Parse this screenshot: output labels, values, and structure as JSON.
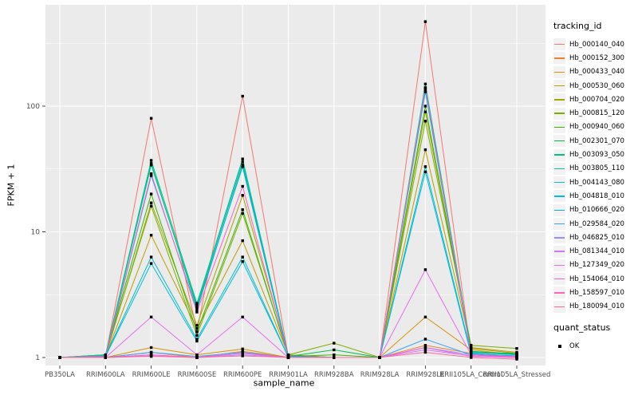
{
  "figure": {
    "background": "#FFFFFF",
    "panel_background": "#EBEBEB",
    "gridline_color": "#FFFFFF",
    "axis_text_color": "#4D4D4D",
    "tick_mark_color": "#333333",
    "point_color": "#000000"
  },
  "chart_data": {
    "type": "line",
    "title": "",
    "xlabel": "sample_name",
    "ylabel": "FPKM + 1",
    "y_scale": "log10",
    "ylim": [
      0.86,
      640
    ],
    "yticks": [
      {
        "label": "1",
        "value": 1
      },
      {
        "label": "10",
        "value": 10
      },
      {
        "label": "100",
        "value": 100
      }
    ],
    "y_minor_breaks": [
      3.162,
      31.62,
      316.2
    ],
    "grid": true,
    "point_marker": "square",
    "categories": [
      "PB350LA",
      "RRIM600LA",
      "RRIM600LE",
      "RRIM600SE",
      "RRIM600PE",
      "RRIM901LA",
      "RRIM928BA",
      "RRIM928LA",
      "RRIM928LE",
      "RRII105LA_Control",
      "RRII105LA_Stressed"
    ],
    "series": [
      {
        "name": "Hb_000140_040",
        "color": "#F8766D",
        "values": [
          1.0,
          1.02,
          80,
          1.6,
          120,
          1.02,
          1.0,
          1.0,
          470,
          1.05,
          1.0
        ]
      },
      {
        "name": "Hb_000152_300",
        "color": "#EA8331",
        "values": [
          1.0,
          1.0,
          1.1,
          1.0,
          1.12,
          1.0,
          1.0,
          1.0,
          1.25,
          1.08,
          1.02
        ]
      },
      {
        "name": "Hb_000433_040",
        "color": "#D89000",
        "values": [
          1.0,
          1.0,
          1.2,
          1.05,
          1.17,
          1.0,
          1.0,
          1.0,
          2.1,
          1.15,
          1.05
        ]
      },
      {
        "name": "Hb_000530_060",
        "color": "#C09B00",
        "values": [
          1.0,
          1.02,
          9.4,
          1.7,
          8.5,
          1.05,
          1.0,
          1.0,
          45,
          1.2,
          1.1
        ]
      },
      {
        "name": "Hb_000704_020",
        "color": "#A3A500",
        "values": [
          1.0,
          1.02,
          17,
          1.8,
          19.5,
          1.05,
          1.0,
          1.0,
          90,
          1.18,
          1.08
        ]
      },
      {
        "name": "Hb_000815_120",
        "color": "#7CAE00",
        "values": [
          1.0,
          1.05,
          16,
          1.5,
          14,
          1.05,
          1.3,
          1.0,
          76,
          1.25,
          1.18
        ]
      },
      {
        "name": "Hb_000940_060",
        "color": "#39B600",
        "values": [
          1.0,
          1.05,
          20,
          1.6,
          15,
          1.02,
          1.05,
          1.0,
          100,
          1.12,
          1.06
        ]
      },
      {
        "name": "Hb_002301_070",
        "color": "#00BB4E",
        "values": [
          1.0,
          1.03,
          35,
          2.5,
          33,
          1.02,
          1.15,
          1.0,
          140,
          1.1,
          1.08
        ]
      },
      {
        "name": "Hb_003093_050",
        "color": "#00C087",
        "values": [
          1.0,
          1.05,
          37,
          2.7,
          38,
          1.03,
          1.0,
          1.0,
          150,
          1.12,
          1.05
        ]
      },
      {
        "name": "Hb_003805_110",
        "color": "#00C1AB",
        "values": [
          1.0,
          1.04,
          34,
          2.6,
          36,
          1.02,
          1.0,
          1.0,
          135,
          1.1,
          1.05
        ]
      },
      {
        "name": "Hb_004143_080",
        "color": "#00BFC4",
        "values": [
          1.0,
          1.03,
          6.3,
          1.4,
          6.3,
          1.01,
          1.0,
          1.0,
          33,
          1.08,
          1.02
        ]
      },
      {
        "name": "Hb_004818_010",
        "color": "#00BAE0",
        "values": [
          1.0,
          1.02,
          5.6,
          1.35,
          5.8,
          1.01,
          1.0,
          1.0,
          30,
          1.05,
          1.02
        ]
      },
      {
        "name": "Hb_010666_020",
        "color": "#00B0F6",
        "values": [
          1.0,
          1.01,
          28,
          2.4,
          34,
          1.02,
          1.0,
          1.0,
          130,
          1.07,
          1.03
        ]
      },
      {
        "name": "Hb_029584_020",
        "color": "#35A2FF",
        "values": [
          1.0,
          1.0,
          1.1,
          1.02,
          1.1,
          1.0,
          1.0,
          1.0,
          1.4,
          1.05,
          1.01
        ]
      },
      {
        "name": "Hb_046825_010",
        "color": "#9590FF",
        "values": [
          1.0,
          1.0,
          1.05,
          1.0,
          1.08,
          1.0,
          1.0,
          1.0,
          1.2,
          1.05,
          1.01
        ]
      },
      {
        "name": "Hb_081344_010",
        "color": "#C77CFF",
        "values": [
          1.0,
          1.0,
          1.03,
          1.0,
          1.05,
          1.0,
          1.0,
          1.0,
          1.15,
          1.03,
          1.0
        ]
      },
      {
        "name": "Hb_127349_020",
        "color": "#E76BF3",
        "values": [
          1.0,
          1.0,
          2.1,
          1.05,
          2.1,
          1.0,
          1.0,
          1.0,
          5.0,
          1.05,
          1.0
        ]
      },
      {
        "name": "Hb_154064_010",
        "color": "#FA62DB",
        "values": [
          1.0,
          1.0,
          1.05,
          1.0,
          1.08,
          1.0,
          1.0,
          1.0,
          1.2,
          1.02,
          1.0
        ]
      },
      {
        "name": "Hb_158597_010",
        "color": "#FF62BC",
        "values": [
          1.0,
          1.02,
          29,
          2.3,
          23,
          1.01,
          1.0,
          1.0,
          140,
          1.05,
          1.02
        ]
      },
      {
        "name": "Hb_180094_010",
        "color": "#FF6A98",
        "values": [
          1.0,
          1.0,
          1.02,
          1.0,
          1.03,
          1.0,
          1.0,
          1.0,
          1.1,
          1.0,
          0.97
        ]
      }
    ],
    "legend": {
      "title": "tracking_id",
      "position": "right",
      "quant": {
        "title": "quant_status",
        "items": [
          {
            "label": "OK",
            "marker": "black-square"
          }
        ]
      }
    }
  }
}
